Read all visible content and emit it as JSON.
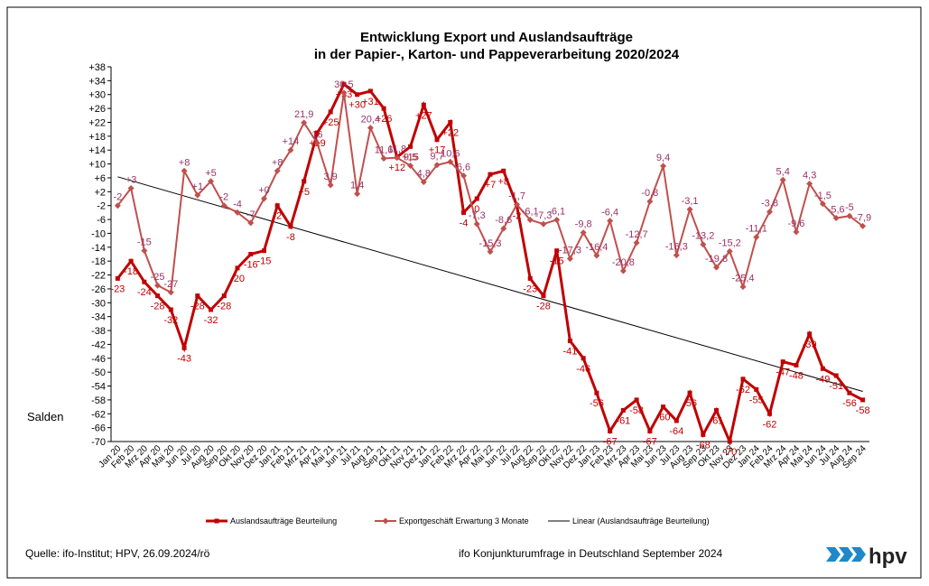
{
  "chart_data": {
    "type": "line",
    "title": [
      "Entwicklung Export und Auslandsaufträge",
      "in der Papier-, Karton- und Pappeverarbeitung 2020/2024"
    ],
    "y_label": "Salden",
    "categories": [
      "Jan 20",
      "Feb 20",
      "Mrz 20",
      "Apr 20",
      "Mai 20",
      "Jun 20",
      "Jul 20",
      "Aug 20",
      "Sep 20",
      "Okt 20",
      "Nov 20",
      "Dez 20",
      "Jan 21",
      "Feb 21",
      "Mrz 21",
      "Apr 21",
      "Mai 21",
      "Jun 21",
      "Jul 21",
      "Aug 21",
      "Sep 21",
      "Okt 21",
      "Nov 21",
      "Dez 21",
      "Jan 22",
      "Feb 22",
      "Mrz 22",
      "Apr 22",
      "Mai 22",
      "Jun 22",
      "Jul 22",
      "Aug 22",
      "Sep 22",
      "Okt 22",
      "Nov 22",
      "Dez 22",
      "Jan 23",
      "Feb 23",
      "Mrz 23",
      "Apr 23",
      "Mai 23",
      "Jun 23",
      "Jul 23",
      "Aug 23",
      "Sep 23",
      "Okt 23",
      "Nov 23",
      "Dez 23",
      "Jan 24",
      "Feb 24",
      "Mrz 24",
      "Apr 24",
      "Mai 24",
      "Jun 24",
      "Jul 24",
      "Aug 24",
      "Sep 24"
    ],
    "series": [
      {
        "name": "Auslandsaufträge Beurteilung",
        "color": "#c00000",
        "marker": "square",
        "values": [
          -23,
          -18,
          -24,
          -28,
          -32,
          -43,
          -28,
          -32,
          -28,
          -20,
          -16,
          -15,
          -2,
          -8,
          5,
          19,
          25,
          33,
          30,
          31,
          26,
          12,
          15,
          27,
          17,
          22,
          -4,
          0,
          7,
          8,
          -2,
          -23,
          -28,
          -15,
          -41,
          -46,
          -56,
          -67,
          -61,
          -58,
          -67,
          -60,
          -64,
          -56,
          -68,
          -61,
          -70,
          -52,
          -55,
          -62,
          -47,
          -48,
          -39,
          -49,
          -51,
          -56,
          -58
        ],
        "value_labels": [
          "-23",
          "-18",
          "-24",
          "-28",
          "-32",
          "-43",
          "-28",
          "-32",
          "-28",
          "-20",
          "-16",
          "-15",
          "-2",
          "-8",
          "+5",
          "+19",
          "+25",
          "+33",
          "+30",
          "+31",
          "+26",
          "+12",
          "+15",
          "+27",
          "+17",
          "+22",
          "-4",
          "0",
          "+7",
          "+8",
          "-2",
          "-23",
          "-28",
          "-15",
          "-41",
          "-46",
          "-56",
          "-67",
          "-61",
          "-58",
          "-67",
          "-60",
          "-64",
          "-56",
          "-68",
          "-61",
          "-70",
          "-52",
          "-55",
          "-62",
          "-47",
          "-48",
          "-39",
          "-49",
          "-51",
          "-56",
          "-58"
        ]
      },
      {
        "name": "Exportgeschäft Erwartung 3 Monate",
        "color": "#c0504d",
        "marker": "diamond",
        "values": [
          -2,
          3,
          -15,
          -25,
          -27,
          8,
          1,
          5,
          -2,
          -4,
          -7,
          0,
          8,
          14,
          21.9,
          16,
          3.9,
          30.5,
          1.4,
          20.4,
          11.6,
          11.8,
          9.5,
          4.8,
          9.7,
          10.6,
          6.6,
          -7.3,
          -15.3,
          -8.6,
          -1.7,
          -6.1,
          -7.3,
          -6.1,
          -17.3,
          -9.8,
          -16.4,
          -6.4,
          -20.8,
          -12.7,
          -0.8,
          9.4,
          -16.3,
          -3.1,
          -13.2,
          -19.8,
          -15.2,
          -25.4,
          -11.1,
          -3.8,
          5.4,
          -9.6,
          4.3,
          -1.5,
          -5.6,
          -5,
          -7.9
        ],
        "value_labels": [
          "-2",
          "+3",
          "-15",
          "-25",
          "-27",
          "+8",
          "+1",
          "+5",
          "-2",
          "-4",
          "-7",
          "+0",
          "+8",
          "+14",
          "21,9",
          "16",
          "3,9",
          "30,5",
          "1,4",
          "20,4",
          "11,6",
          "11,8",
          "9,5",
          "4,8",
          "9,7",
          "10,6",
          "6,6",
          "-7,3",
          "-15,3",
          "-8,6",
          "-1,7",
          "-6,1",
          "-7,3",
          "-6,1",
          "-17,3",
          "-9,8",
          "-16,4",
          "-6,4",
          "-20,8",
          "-12,7",
          "-0,8",
          "9,4",
          "-16,3",
          "-3,1",
          "-13,2",
          "-19,8",
          "-15,2",
          "-25,4",
          "-11,1",
          "-3,8",
          "5,4",
          "-9,6",
          "4,3",
          "-1,5",
          "-5,6",
          "-5",
          "-7,9"
        ]
      }
    ],
    "trendline": {
      "name": "Linear (Auslandsaufträge Beurteilung)",
      "of_series": 0,
      "color": "#000000"
    },
    "ylim": [
      -70,
      38
    ],
    "yticks": [
      {
        "value": 38,
        "label": "+38"
      },
      {
        "value": 34,
        "label": "+34"
      },
      {
        "value": 30,
        "label": "+30"
      },
      {
        "value": 26,
        "label": "+26"
      },
      {
        "value": 22,
        "label": "+22"
      },
      {
        "value": 18,
        "label": "+18"
      },
      {
        "value": 14,
        "label": "+14"
      },
      {
        "value": 10,
        "label": "+10"
      },
      {
        "value": 6,
        "label": "+6"
      },
      {
        "value": 2,
        "label": "+2"
      },
      -2,
      -6,
      -10,
      -14,
      -18,
      -22,
      -26,
      -30,
      -34,
      -38,
      -42,
      -46,
      -50,
      -54,
      -58,
      -62,
      -66,
      -70
    ],
    "grid": false,
    "legend": "bottom"
  },
  "footer": {
    "source": "Quelle: ifo-Institut; HPV, 26.09.2024/rö",
    "survey": "ifo Konjunkturumfrage in Deutschland September 2024",
    "logo": "hpv"
  }
}
